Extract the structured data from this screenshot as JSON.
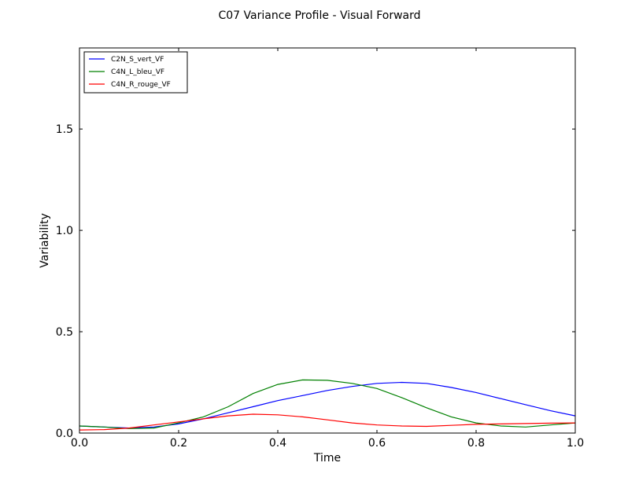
{
  "chart_data": {
    "type": "line",
    "title": "C07 Variance Profile - Visual Forward",
    "xlabel": "Time",
    "ylabel": "Variability",
    "xlim": [
      0.0,
      1.0
    ],
    "ylim": [
      0.0,
      1.9
    ],
    "xticks": [
      0.0,
      0.2,
      0.4,
      0.6,
      0.8,
      1.0
    ],
    "xtick_labels": [
      "0.0",
      "0.2",
      "0.4",
      "0.6",
      "0.8",
      "1.0"
    ],
    "yticks": [
      0.0,
      0.5,
      1.0,
      1.5
    ],
    "ytick_labels": [
      "0.0",
      "0.5",
      "1.0",
      "1.5"
    ],
    "grid": false,
    "legend_position": "top-left",
    "x": [
      0.0,
      0.05,
      0.1,
      0.15,
      0.2,
      0.25,
      0.3,
      0.35,
      0.4,
      0.45,
      0.5,
      0.55,
      0.6,
      0.65,
      0.7,
      0.75,
      0.8,
      0.85,
      0.9,
      0.95,
      1.0
    ],
    "series": [
      {
        "name": "C2N_S_vert_VF",
        "color": "#0000ff",
        "values": [
          0.035,
          0.03,
          0.025,
          0.03,
          0.045,
          0.07,
          0.1,
          0.13,
          0.16,
          0.185,
          0.21,
          0.23,
          0.245,
          0.25,
          0.245,
          0.225,
          0.2,
          0.17,
          0.14,
          0.11,
          0.085
        ]
      },
      {
        "name": "C4N_L_bleu_VF",
        "color": "#008000",
        "values": [
          0.035,
          0.03,
          0.022,
          0.025,
          0.05,
          0.08,
          0.13,
          0.195,
          0.24,
          0.262,
          0.26,
          0.245,
          0.22,
          0.175,
          0.125,
          0.08,
          0.05,
          0.035,
          0.03,
          0.04,
          0.05
        ]
      },
      {
        "name": "C4N_R_rouge_VF",
        "color": "#ff0000",
        "values": [
          0.015,
          0.017,
          0.025,
          0.04,
          0.055,
          0.07,
          0.085,
          0.093,
          0.09,
          0.08,
          0.065,
          0.05,
          0.04,
          0.035,
          0.033,
          0.038,
          0.043,
          0.045,
          0.047,
          0.049,
          0.05
        ]
      }
    ]
  }
}
